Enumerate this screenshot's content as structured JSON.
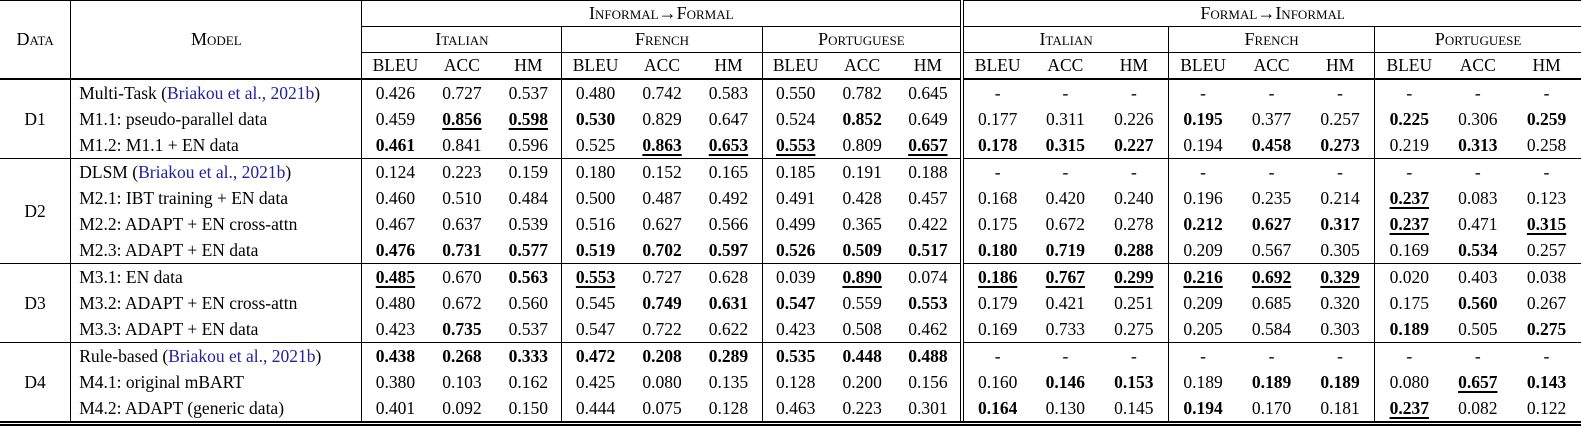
{
  "colors": {
    "citation_blue": "#2121a3",
    "text": "#000000",
    "background": "#ffffff"
  },
  "header": {
    "data_label": "Data",
    "model_label": "Model",
    "directions": [
      "Informal→Formal",
      "Formal→Informal"
    ],
    "languages": [
      "Italian",
      "French",
      "Portuguese"
    ],
    "metrics": [
      "BLEU",
      "ACC",
      "HM"
    ]
  },
  "groups": [
    {
      "id": "D1",
      "rows": [
        {
          "model": {
            "pre": "Multi-Task (",
            "cite": "Briakou et al., 2021b",
            "post": ")"
          },
          "cells": [
            "0.426",
            "0.727",
            "0.537",
            "0.480",
            "0.742",
            "0.583",
            "0.550",
            "0.782",
            "0.645",
            "-",
            "-",
            "-",
            "-",
            "-",
            "-",
            "-",
            "-",
            "-"
          ]
        },
        {
          "model": {
            "pre": "M1.1: pseudo-parallel data"
          },
          "cells": [
            "0.459",
            {
              "v": "0.856",
              "b": true,
              "u": true
            },
            {
              "v": "0.598",
              "b": true,
              "u": true
            },
            {
              "v": "0.530",
              "b": true
            },
            "0.829",
            "0.647",
            "0.524",
            {
              "v": "0.852",
              "b": true
            },
            "0.649",
            "0.177",
            "0.311",
            "0.226",
            {
              "v": "0.195",
              "b": true
            },
            "0.377",
            "0.257",
            {
              "v": "0.225",
              "b": true
            },
            "0.306",
            {
              "v": "0.259",
              "b": true
            }
          ]
        },
        {
          "model": {
            "pre": "M1.2: M1.1 + EN data"
          },
          "cells": [
            {
              "v": "0.461",
              "b": true
            },
            "0.841",
            "0.596",
            "0.525",
            {
              "v": "0.863",
              "b": true,
              "u": true
            },
            {
              "v": "0.653",
              "b": true,
              "u": true
            },
            {
              "v": "0.553",
              "b": true,
              "u": true
            },
            "0.809",
            {
              "v": "0.657",
              "b": true,
              "u": true
            },
            {
              "v": "0.178",
              "b": true
            },
            {
              "v": "0.315",
              "b": true
            },
            {
              "v": "0.227",
              "b": true
            },
            "0.194",
            {
              "v": "0.458",
              "b": true
            },
            {
              "v": "0.273",
              "b": true
            },
            "0.219",
            {
              "v": "0.313",
              "b": true
            },
            "0.258"
          ]
        }
      ]
    },
    {
      "id": "D2",
      "rows": [
        {
          "model": {
            "pre": "DLSM (",
            "cite": "Briakou et al., 2021b",
            "post": ")"
          },
          "cells": [
            "0.124",
            "0.223",
            "0.159",
            "0.180",
            "0.152",
            "0.165",
            "0.185",
            "0.191",
            "0.188",
            "-",
            "-",
            "-",
            "-",
            "-",
            "-",
            "-",
            "-",
            "-"
          ]
        },
        {
          "model": {
            "pre": "M2.1: IBT training + EN data"
          },
          "cells": [
            "0.460",
            "0.510",
            "0.484",
            "0.500",
            "0.487",
            "0.492",
            "0.491",
            "0.428",
            "0.457",
            "0.168",
            "0.420",
            "0.240",
            "0.196",
            "0.235",
            "0.214",
            {
              "v": "0.237",
              "b": true,
              "u": true
            },
            "0.083",
            "0.123"
          ]
        },
        {
          "model": {
            "pre": "M2.2: ADAPT + EN cross-attn"
          },
          "cells": [
            "0.467",
            "0.637",
            "0.539",
            "0.516",
            "0.627",
            "0.566",
            "0.499",
            "0.365",
            "0.422",
            "0.175",
            "0.672",
            "0.278",
            {
              "v": "0.212",
              "b": true
            },
            {
              "v": "0.627",
              "b": true
            },
            {
              "v": "0.317",
              "b": true
            },
            {
              "v": "0.237",
              "b": true,
              "u": true
            },
            "0.471",
            {
              "v": "0.315",
              "b": true,
              "u": true
            }
          ]
        },
        {
          "model": {
            "pre": "M2.3: ADAPT + EN data"
          },
          "cells": [
            {
              "v": "0.476",
              "b": true
            },
            {
              "v": "0.731",
              "b": true
            },
            {
              "v": "0.577",
              "b": true
            },
            {
              "v": "0.519",
              "b": true
            },
            {
              "v": "0.702",
              "b": true
            },
            {
              "v": "0.597",
              "b": true
            },
            {
              "v": "0.526",
              "b": true
            },
            {
              "v": "0.509",
              "b": true
            },
            {
              "v": "0.517",
              "b": true
            },
            {
              "v": "0.180",
              "b": true
            },
            {
              "v": "0.719",
              "b": true
            },
            {
              "v": "0.288",
              "b": true
            },
            "0.209",
            "0.567",
            "0.305",
            "0.169",
            {
              "v": "0.534",
              "b": true
            },
            "0.257"
          ]
        }
      ]
    },
    {
      "id": "D3",
      "rows": [
        {
          "model": {
            "pre": "M3.1: EN data"
          },
          "cells": [
            {
              "v": "0.485",
              "b": true,
              "u": true
            },
            "0.670",
            {
              "v": "0.563",
              "b": true
            },
            {
              "v": "0.553",
              "b": true,
              "u": true
            },
            "0.727",
            "0.628",
            "0.039",
            {
              "v": "0.890",
              "b": true,
              "u": true
            },
            "0.074",
            {
              "v": "0.186",
              "b": true,
              "u": true
            },
            {
              "v": "0.767",
              "b": true,
              "u": true
            },
            {
              "v": "0.299",
              "b": true,
              "u": true
            },
            {
              "v": "0.216",
              "b": true,
              "u": true
            },
            {
              "v": "0.692",
              "b": true,
              "u": true
            },
            {
              "v": "0.329",
              "b": true,
              "u": true
            },
            "0.020",
            "0.403",
            "0.038"
          ]
        },
        {
          "model": {
            "pre": "M3.2: ADAPT + EN cross-attn"
          },
          "cells": [
            "0.480",
            "0.672",
            "0.560",
            "0.545",
            {
              "v": "0.749",
              "b": true
            },
            {
              "v": "0.631",
              "b": true
            },
            {
              "v": "0.547",
              "b": true
            },
            "0.559",
            {
              "v": "0.553",
              "b": true
            },
            "0.179",
            "0.421",
            "0.251",
            "0.209",
            "0.685",
            "0.320",
            "0.175",
            {
              "v": "0.560",
              "b": true
            },
            "0.267"
          ]
        },
        {
          "model": {
            "pre": "M3.3: ADAPT + EN data"
          },
          "cells": [
            "0.423",
            {
              "v": "0.735",
              "b": true
            },
            "0.537",
            "0.547",
            "0.722",
            "0.622",
            "0.423",
            "0.508",
            "0.462",
            "0.169",
            "0.733",
            "0.275",
            "0.205",
            "0.584",
            "0.303",
            {
              "v": "0.189",
              "b": true
            },
            "0.505",
            {
              "v": "0.275",
              "b": true
            }
          ]
        }
      ]
    },
    {
      "id": "D4",
      "rows": [
        {
          "model": {
            "pre": "Rule-based (",
            "cite": "Briakou et al., 2021b",
            "post": ")"
          },
          "cells": [
            {
              "v": "0.438",
              "b": true
            },
            {
              "v": "0.268",
              "b": true
            },
            {
              "v": "0.333",
              "b": true
            },
            {
              "v": "0.472",
              "b": true
            },
            {
              "v": "0.208",
              "b": true
            },
            {
              "v": "0.289",
              "b": true
            },
            {
              "v": "0.535",
              "b": true
            },
            {
              "v": "0.448",
              "b": true
            },
            {
              "v": "0.488",
              "b": true
            },
            "-",
            "-",
            "-",
            "-",
            "-",
            "-",
            "-",
            "-",
            "-"
          ]
        },
        {
          "model": {
            "pre": "M4.1: original mBART"
          },
          "cells": [
            "0.380",
            "0.103",
            "0.162",
            "0.425",
            "0.080",
            "0.135",
            "0.128",
            "0.200",
            "0.156",
            "0.160",
            {
              "v": "0.146",
              "b": true
            },
            {
              "v": "0.153",
              "b": true
            },
            "0.189",
            {
              "v": "0.189",
              "b": true
            },
            {
              "v": "0.189",
              "b": true
            },
            "0.080",
            {
              "v": "0.657",
              "b": true,
              "u": true
            },
            {
              "v": "0.143",
              "b": true
            }
          ]
        },
        {
          "model": {
            "pre": "M4.2: ADAPT (generic data)"
          },
          "cells": [
            "0.401",
            "0.092",
            "0.150",
            "0.444",
            "0.075",
            "0.128",
            "0.463",
            "0.223",
            "0.301",
            {
              "v": "0.164",
              "b": true
            },
            "0.130",
            "0.145",
            {
              "v": "0.194",
              "b": true
            },
            "0.170",
            "0.181",
            {
              "v": "0.237",
              "b": true,
              "u": true
            },
            "0.082",
            "0.122"
          ]
        }
      ]
    }
  ]
}
